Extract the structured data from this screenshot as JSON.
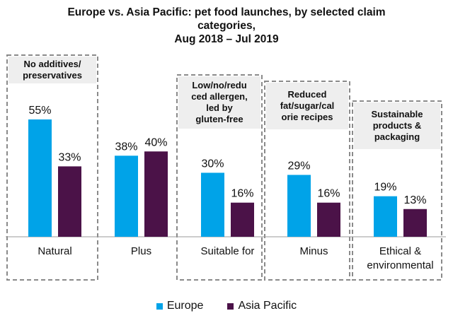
{
  "chart_data": {
    "type": "bar",
    "title_lines": [
      "Europe vs. Asia Pacific: pet food launches, by selected claim",
      "categories,",
      "Aug 2018 – Jul 2019"
    ],
    "categories": [
      [
        "Natural"
      ],
      [
        "Plus"
      ],
      [
        "Suitable for"
      ],
      [
        "Minus"
      ],
      [
        "Ethical &",
        "environmental"
      ]
    ],
    "series": [
      {
        "name": "Europe",
        "color": "#00a3e8",
        "values": [
          55,
          38,
          30,
          29,
          19
        ],
        "labels": [
          "55%",
          "38%",
          "30%",
          "29%",
          "19%"
        ]
      },
      {
        "name": "Asia Pacific",
        "color": "#4b1248",
        "values": [
          33,
          40,
          16,
          16,
          13
        ],
        "labels": [
          "33%",
          "40%",
          "16%",
          "16%",
          "13%"
        ]
      }
    ],
    "unit": "%",
    "ylim": [
      0,
      55
    ],
    "callouts": [
      {
        "category": 0,
        "lines": [
          "No additives/",
          "preservatives"
        ]
      },
      {
        "category": 2,
        "lines": [
          "Low/no/redu",
          "ced allergen,",
          "led by",
          "gluten-free"
        ]
      },
      {
        "category": 3,
        "lines": [
          "Reduced",
          "fat/sugar/cal",
          "orie recipes"
        ]
      },
      {
        "category": 4,
        "lines": [
          "Sustainable",
          "products &",
          "packaging"
        ]
      }
    ],
    "legend_position": "bottom-center",
    "grid": false
  }
}
